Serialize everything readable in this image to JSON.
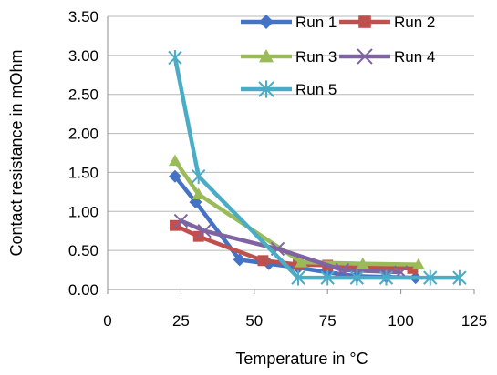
{
  "chart_data": {
    "type": "line",
    "title": "",
    "xlabel": "Temperature in °C",
    "ylabel": "Contact resistance in mOhm",
    "xlim": [
      0,
      125
    ],
    "ylim": [
      0,
      3.5
    ],
    "x_ticks": [
      "0",
      "25",
      "50",
      "75",
      "100",
      "125"
    ],
    "y_ticks": [
      "0.00",
      "0.50",
      "1.00",
      "1.50",
      "2.00",
      "2.50",
      "3.00",
      "3.50"
    ],
    "grid": "horizontal",
    "legend_position": "top-right",
    "series": [
      {
        "name": "Run 1",
        "color": "#4472C4",
        "marker": "diamond",
        "x": [
          23,
          30,
          45,
          55,
          65,
          75,
          85,
          95,
          105
        ],
        "y": [
          1.45,
          1.12,
          0.38,
          0.33,
          0.28,
          0.22,
          0.17,
          0.16,
          0.15
        ]
      },
      {
        "name": "Run 2",
        "color": "#C0504D",
        "marker": "square",
        "x": [
          23,
          31,
          53,
          65,
          75,
          90,
          104
        ],
        "y": [
          0.82,
          0.68,
          0.37,
          0.32,
          0.31,
          0.28,
          0.27
        ]
      },
      {
        "name": "Run 3",
        "color": "#9BBB59",
        "marker": "triangle",
        "x": [
          23,
          31,
          66,
          87,
          106
        ],
        "y": [
          1.65,
          1.22,
          0.35,
          0.33,
          0.32
        ]
      },
      {
        "name": "Run 4",
        "color": "#8064A2",
        "marker": "x",
        "x": [
          25,
          33,
          58,
          80,
          100
        ],
        "y": [
          0.88,
          0.75,
          0.52,
          0.25,
          0.22
        ]
      },
      {
        "name": "Run 5",
        "color": "#4BACC6",
        "marker": "star",
        "x": [
          23,
          31,
          65,
          75,
          85,
          95,
          110,
          120
        ],
        "y": [
          2.97,
          1.45,
          0.15,
          0.15,
          0.15,
          0.15,
          0.15,
          0.15
        ]
      }
    ]
  }
}
